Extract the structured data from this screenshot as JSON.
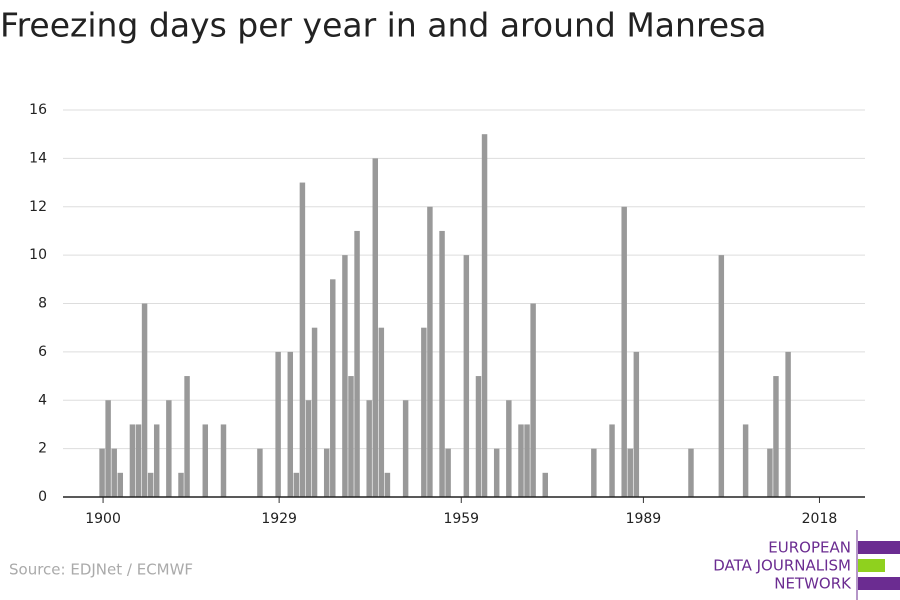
{
  "chart_data": {
    "type": "bar",
    "title": "Freezing days per year in and around Manresa",
    "source": "Source: EDJNet / ECMWF",
    "logo": [
      "EUROPEAN",
      "DATA JOURNALISM",
      "NETWORK"
    ],
    "x": [
      1900,
      1901,
      1902,
      1903,
      1904,
      1905,
      1906,
      1907,
      1908,
      1909,
      1910,
      1911,
      1912,
      1913,
      1914,
      1915,
      1916,
      1917,
      1918,
      1919,
      1920,
      1921,
      1922,
      1923,
      1924,
      1925,
      1926,
      1927,
      1928,
      1929,
      1930,
      1931,
      1932,
      1933,
      1934,
      1935,
      1936,
      1937,
      1938,
      1939,
      1940,
      1941,
      1942,
      1943,
      1944,
      1945,
      1946,
      1947,
      1948,
      1949,
      1950,
      1951,
      1952,
      1953,
      1954,
      1955,
      1956,
      1957,
      1958,
      1959,
      1960,
      1961,
      1962,
      1963,
      1964,
      1965,
      1966,
      1967,
      1968,
      1969,
      1970,
      1971,
      1972,
      1973,
      1974,
      1975,
      1976,
      1977,
      1978,
      1979,
      1980,
      1981,
      1982,
      1983,
      1984,
      1985,
      1986,
      1987,
      1988,
      1989,
      1990,
      1991,
      1992,
      1993,
      1994,
      1995,
      1996,
      1997,
      1998,
      1999,
      2000,
      2001,
      2002,
      2003,
      2004,
      2005,
      2006,
      2007,
      2008,
      2009,
      2010,
      2011,
      2012,
      2013,
      2014,
      2015,
      2016,
      2017,
      2018
    ],
    "values": [
      2,
      4,
      2,
      1,
      0,
      3,
      3,
      8,
      1,
      3,
      0,
      4,
      0,
      1,
      5,
      0,
      0,
      3,
      0,
      0,
      3,
      0,
      0,
      0,
      0,
      0,
      2,
      0,
      0,
      6,
      0,
      6,
      1,
      13,
      4,
      7,
      0,
      2,
      9,
      0,
      10,
      5,
      11,
      0,
      4,
      14,
      7,
      1,
      0,
      0,
      4,
      0,
      0,
      7,
      12,
      0,
      11,
      2,
      0,
      0,
      10,
      0,
      5,
      15,
      0,
      2,
      0,
      4,
      0,
      3,
      3,
      8,
      0,
      1,
      0,
      0,
      0,
      0,
      0,
      0,
      0,
      2,
      0,
      0,
      3,
      0,
      12,
      2,
      6,
      0,
      0,
      0,
      0,
      0,
      0,
      0,
      0,
      2,
      0,
      0,
      0,
      0,
      10,
      0,
      0,
      0,
      3,
      0,
      0,
      0,
      2,
      5,
      0,
      6,
      0,
      0,
      0,
      0,
      0
    ],
    "color": "#999999",
    "xlim": [
      1893.4,
      2025.5
    ],
    "xticks": [
      1900,
      1929,
      1959,
      1989,
      2018
    ],
    "ylim": [
      0,
      16
    ],
    "yticks": [
      0,
      2,
      4,
      6,
      8,
      10,
      12,
      14,
      16
    ],
    "grid": true
  }
}
